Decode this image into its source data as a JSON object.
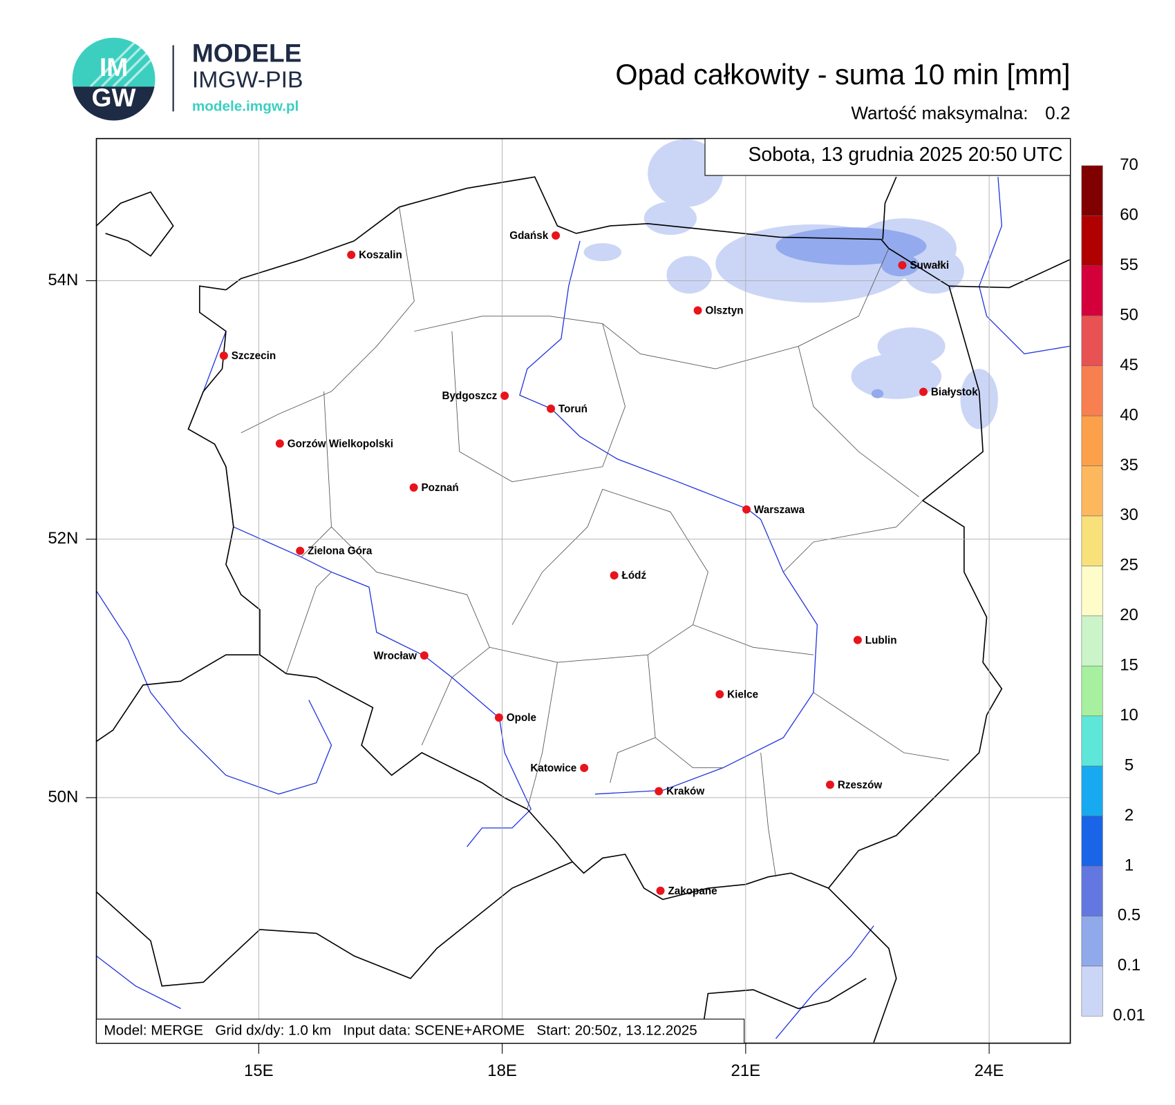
{
  "header": {
    "logo_top": "IM",
    "logo_bottom": "GW",
    "brand": "MODELE",
    "brand_sub": "IMGW-PIB",
    "url": "modele.imgw.pl"
  },
  "chart_data": {
    "type": "map",
    "title": "Opad całkowity - suma 10 min [mm]",
    "max_label": "Wartość maksymalna:",
    "max_value": 0.2,
    "date": "Sobota, 13 grudnia 2025 20:50 UTC",
    "footer": "Model: MERGE   Grid dx/dy: 1.0 km   Input data: SCENE+AROME   Start: 20:50z, 13.12.2025",
    "xlim": [
      13,
      25
    ],
    "ylim": [
      48.1,
      55.1
    ],
    "xticks": [
      {
        "value": 15,
        "label": "15E"
      },
      {
        "value": 18,
        "label": "18E"
      },
      {
        "value": 21,
        "label": "21E"
      },
      {
        "value": 24,
        "label": "24E"
      }
    ],
    "yticks": [
      {
        "value": 54,
        "label": "54N"
      },
      {
        "value": 52,
        "label": "52N"
      },
      {
        "value": 50,
        "label": "50N"
      }
    ],
    "grid": true,
    "cities": [
      {
        "name": "Gdańsk",
        "lon": 18.66,
        "lat": 54.35,
        "label": "left"
      },
      {
        "name": "Koszalin",
        "lon": 16.14,
        "lat": 54.2,
        "label": "right"
      },
      {
        "name": "Suwałki",
        "lon": 22.93,
        "lat": 54.12,
        "label": "right"
      },
      {
        "name": "Olsztyn",
        "lon": 20.41,
        "lat": 53.77,
        "label": "right"
      },
      {
        "name": "Szczecin",
        "lon": 14.57,
        "lat": 53.42,
        "label": "right"
      },
      {
        "name": "Bydgoszcz",
        "lon": 18.03,
        "lat": 53.11,
        "label": "left"
      },
      {
        "name": "Toruń",
        "lon": 18.6,
        "lat": 53.01,
        "label": "right"
      },
      {
        "name": "Białystok",
        "lon": 23.19,
        "lat": 53.14,
        "label": "right"
      },
      {
        "name": "Gorzów Wielkopolski",
        "lon": 15.26,
        "lat": 52.74,
        "label": "right"
      },
      {
        "name": "Poznań",
        "lon": 16.91,
        "lat": 52.4,
        "label": "right"
      },
      {
        "name": "Warszawa",
        "lon": 21.01,
        "lat": 52.23,
        "label": "right"
      },
      {
        "name": "Zielona Góra",
        "lon": 15.51,
        "lat": 51.91,
        "label": "right"
      },
      {
        "name": "Łódź",
        "lon": 19.38,
        "lat": 51.72,
        "label": "right"
      },
      {
        "name": "Lublin",
        "lon": 22.38,
        "lat": 51.22,
        "label": "right"
      },
      {
        "name": "Wrocław",
        "lon": 17.04,
        "lat": 51.1,
        "label": "left"
      },
      {
        "name": "Kielce",
        "lon": 20.68,
        "lat": 50.8,
        "label": "right"
      },
      {
        "name": "Opole",
        "lon": 17.96,
        "lat": 50.62,
        "label": "right"
      },
      {
        "name": "Katowice",
        "lon": 19.01,
        "lat": 50.23,
        "label": "left"
      },
      {
        "name": "Rzeszów",
        "lon": 22.04,
        "lat": 50.1,
        "label": "right"
      },
      {
        "name": "Kraków",
        "lon": 19.93,
        "lat": 50.05,
        "label": "right"
      },
      {
        "name": "Zakopane",
        "lon": 19.95,
        "lat": 49.28,
        "label": "right"
      }
    ],
    "city_color": "#e8141c",
    "colorbar": {
      "levels": [
        0.01,
        0.1,
        0.5,
        1,
        2,
        5,
        10,
        15,
        20,
        25,
        30,
        35,
        40,
        45,
        50,
        55,
        60,
        70
      ],
      "colors": [
        "#cbd6f6",
        "#8fa9eb",
        "#6278e0",
        "#1a64e8",
        "#18aaf0",
        "#5ee6d8",
        "#a6f0a0",
        "#cbf5c8",
        "#fefcc8",
        "#f8e07a",
        "#fdb85d",
        "#fca04a",
        "#f77f50",
        "#e85252",
        "#d4003c",
        "#b00000",
        "#800000"
      ]
    }
  }
}
